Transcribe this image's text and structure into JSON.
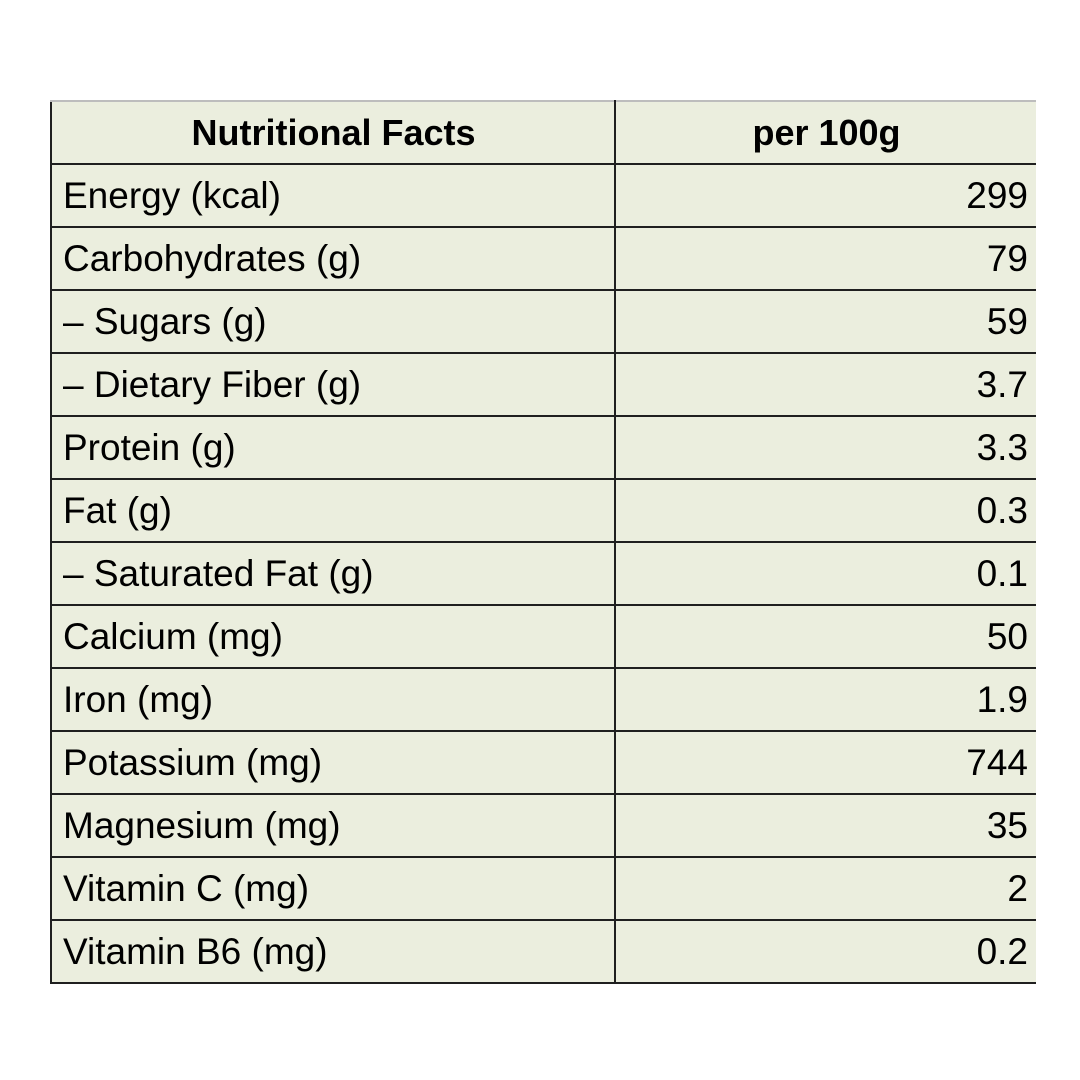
{
  "table": {
    "header": {
      "label": "Nutritional Facts",
      "value": "per 100g"
    },
    "rows": [
      {
        "label": "Energy (kcal)",
        "value": "299"
      },
      {
        "label": "Carbohydrates (g)",
        "value": "79"
      },
      {
        "label": "– Sugars (g)",
        "value": "59"
      },
      {
        "label": "– Dietary Fiber (g)",
        "value": "3.7"
      },
      {
        "label": "Protein (g)",
        "value": "3.3"
      },
      {
        "label": "Fat (g)",
        "value": "0.3"
      },
      {
        "label": "– Saturated Fat (g)",
        "value": "0.1"
      },
      {
        "label": "Calcium (mg)",
        "value": "50"
      },
      {
        "label": "Iron (mg)",
        "value": "1.9"
      },
      {
        "label": "Potassium (mg)",
        "value": "744"
      },
      {
        "label": "Magnesium (mg)",
        "value": "35"
      },
      {
        "label": "Vitamin C (mg)",
        "value": "2"
      },
      {
        "label": "Vitamin B6 (mg)",
        "value": "0.2"
      }
    ]
  },
  "colors": {
    "cell_background": "#ebeede",
    "border": "#1f1f1f",
    "text": "#000000"
  }
}
